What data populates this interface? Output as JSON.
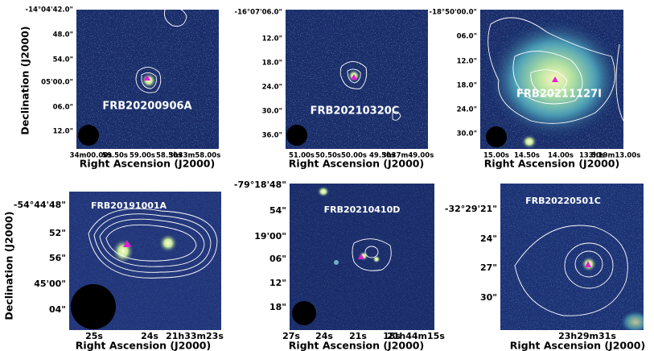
{
  "panels": [
    {
      "label": "FRB20200906A",
      "y_label": "Declination (J2000)",
      "x_label": "Right Ascension (J2000)",
      "y_ticks": [
        "-14°04'42.0\"",
        "48.0\"",
        "54.0\"",
        "05'00.0\"",
        "06.0\"",
        "12.0\""
      ],
      "x_ticks": [
        "34m00.00s",
        "59.50s",
        "59.00s",
        "58.50s",
        "3h33m58.00s"
      ]
    },
    {
      "label": "FRB20210320C",
      "x_label": "Right Ascension (J2000)",
      "y_ticks": [
        "-16°07'06.0\"",
        "12.0\"",
        "18.0\"",
        "24.0\"",
        "30.0\"",
        "36.0\""
      ],
      "x_ticks": [
        "51.00s",
        "50.50s",
        "50.00s",
        "49.50s",
        "3h37m49.00s"
      ]
    },
    {
      "label": "FRB20211127I",
      "x_label": "Right Ascension (J2000)",
      "y_ticks": [
        "-18°50'00.0\"",
        "06.0\"",
        "12.0\"",
        "18.0\"",
        "24.0\"",
        "30.0\""
      ],
      "x_ticks": [
        "15.00s",
        "14.50s",
        "14.00s",
        "13.50s",
        "3h19m13.00s"
      ]
    },
    {
      "label": "FRB20191001A",
      "y_label": "Declination (J2000)",
      "x_label": "Right Ascension (J2000)",
      "y_ticks": [
        "-54°44'48\"",
        "52\"",
        "56\"",
        "45'00\"",
        "04\""
      ],
      "x_ticks": [
        "25s",
        "24s",
        "21h33m23s"
      ]
    },
    {
      "label": "FRB20210410D",
      "x_label": "Right Ascension (J2000)",
      "y_ticks": [
        "-79°18'48\"",
        "54\"",
        "19'00\"",
        "06\"",
        "12\"",
        "18\""
      ],
      "x_ticks": [
        "27s",
        "24s",
        "21s",
        "18s",
        "21h44m15s"
      ]
    },
    {
      "label": "FRB20220501C",
      "x_label": "Right Ascension (J2000)",
      "y_ticks": [
        "-32°29'21\"",
        "24\"",
        "27\"",
        "30\""
      ],
      "x_ticks": [
        "23h29m31s"
      ]
    }
  ]
}
